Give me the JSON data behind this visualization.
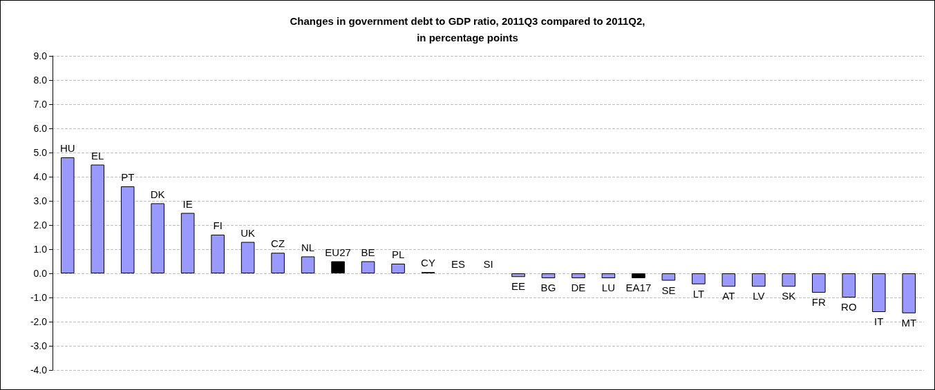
{
  "chart_data": {
    "type": "bar",
    "title": "Changes in government debt to GDP ratio, 2011Q3 compared to 2011Q2,\nin percentage points",
    "categories": [
      "HU",
      "EL",
      "PT",
      "DK",
      "IE",
      "FI",
      "UK",
      "CZ",
      "NL",
      "EU27",
      "BE",
      "PL",
      "CY",
      "ES",
      "SI",
      "EE",
      "BG",
      "DE",
      "LU",
      "EA17",
      "SE",
      "LT",
      "AT",
      "LV",
      "SK",
      "FR",
      "RO",
      "IT",
      "MT"
    ],
    "values": [
      4.8,
      4.5,
      3.6,
      2.9,
      2.5,
      1.6,
      1.3,
      0.85,
      0.7,
      0.5,
      0.5,
      0.4,
      0.05,
      0,
      0,
      -0.15,
      -0.2,
      -0.2,
      -0.2,
      -0.2,
      -0.3,
      -0.45,
      -0.55,
      -0.55,
      -0.55,
      -0.8,
      -1.0,
      -1.6,
      -1.65
    ],
    "colors": [
      "#9999ff",
      "#9999ff",
      "#9999ff",
      "#9999ff",
      "#9999ff",
      "#9999ff",
      "#9999ff",
      "#9999ff",
      "#9999ff",
      "#000000",
      "#9999ff",
      "#9999ff",
      "#000000",
      "#9999ff",
      "#9999ff",
      "#9999ff",
      "#9999ff",
      "#9999ff",
      "#9999ff",
      "#000000",
      "#9999ff",
      "#9999ff",
      "#9999ff",
      "#9999ff",
      "#9999ff",
      "#9999ff",
      "#9999ff",
      "#9999ff",
      "#9999ff"
    ],
    "ylim": [
      -4,
      9
    ],
    "yticks": [
      {
        "value": -4,
        "label": "-4.0"
      },
      {
        "value": -3,
        "label": "-3.0"
      },
      {
        "value": -2,
        "label": "-2.0"
      },
      {
        "value": -1,
        "label": "-1.0"
      },
      {
        "value": 0,
        "label": "0.0"
      },
      {
        "value": 1,
        "label": "1.0"
      },
      {
        "value": 2,
        "label": "2.0"
      },
      {
        "value": 3,
        "label": "3.0"
      },
      {
        "value": 4,
        "label": "4.0"
      },
      {
        "value": 5,
        "label": "5.0"
      },
      {
        "value": 6,
        "label": "6.0"
      },
      {
        "value": 7,
        "label": "7.0"
      },
      {
        "value": 8,
        "label": "8.0"
      },
      {
        "value": 9,
        "label": "9.0"
      }
    ],
    "grid": "y",
    "tick_labels": "y"
  }
}
